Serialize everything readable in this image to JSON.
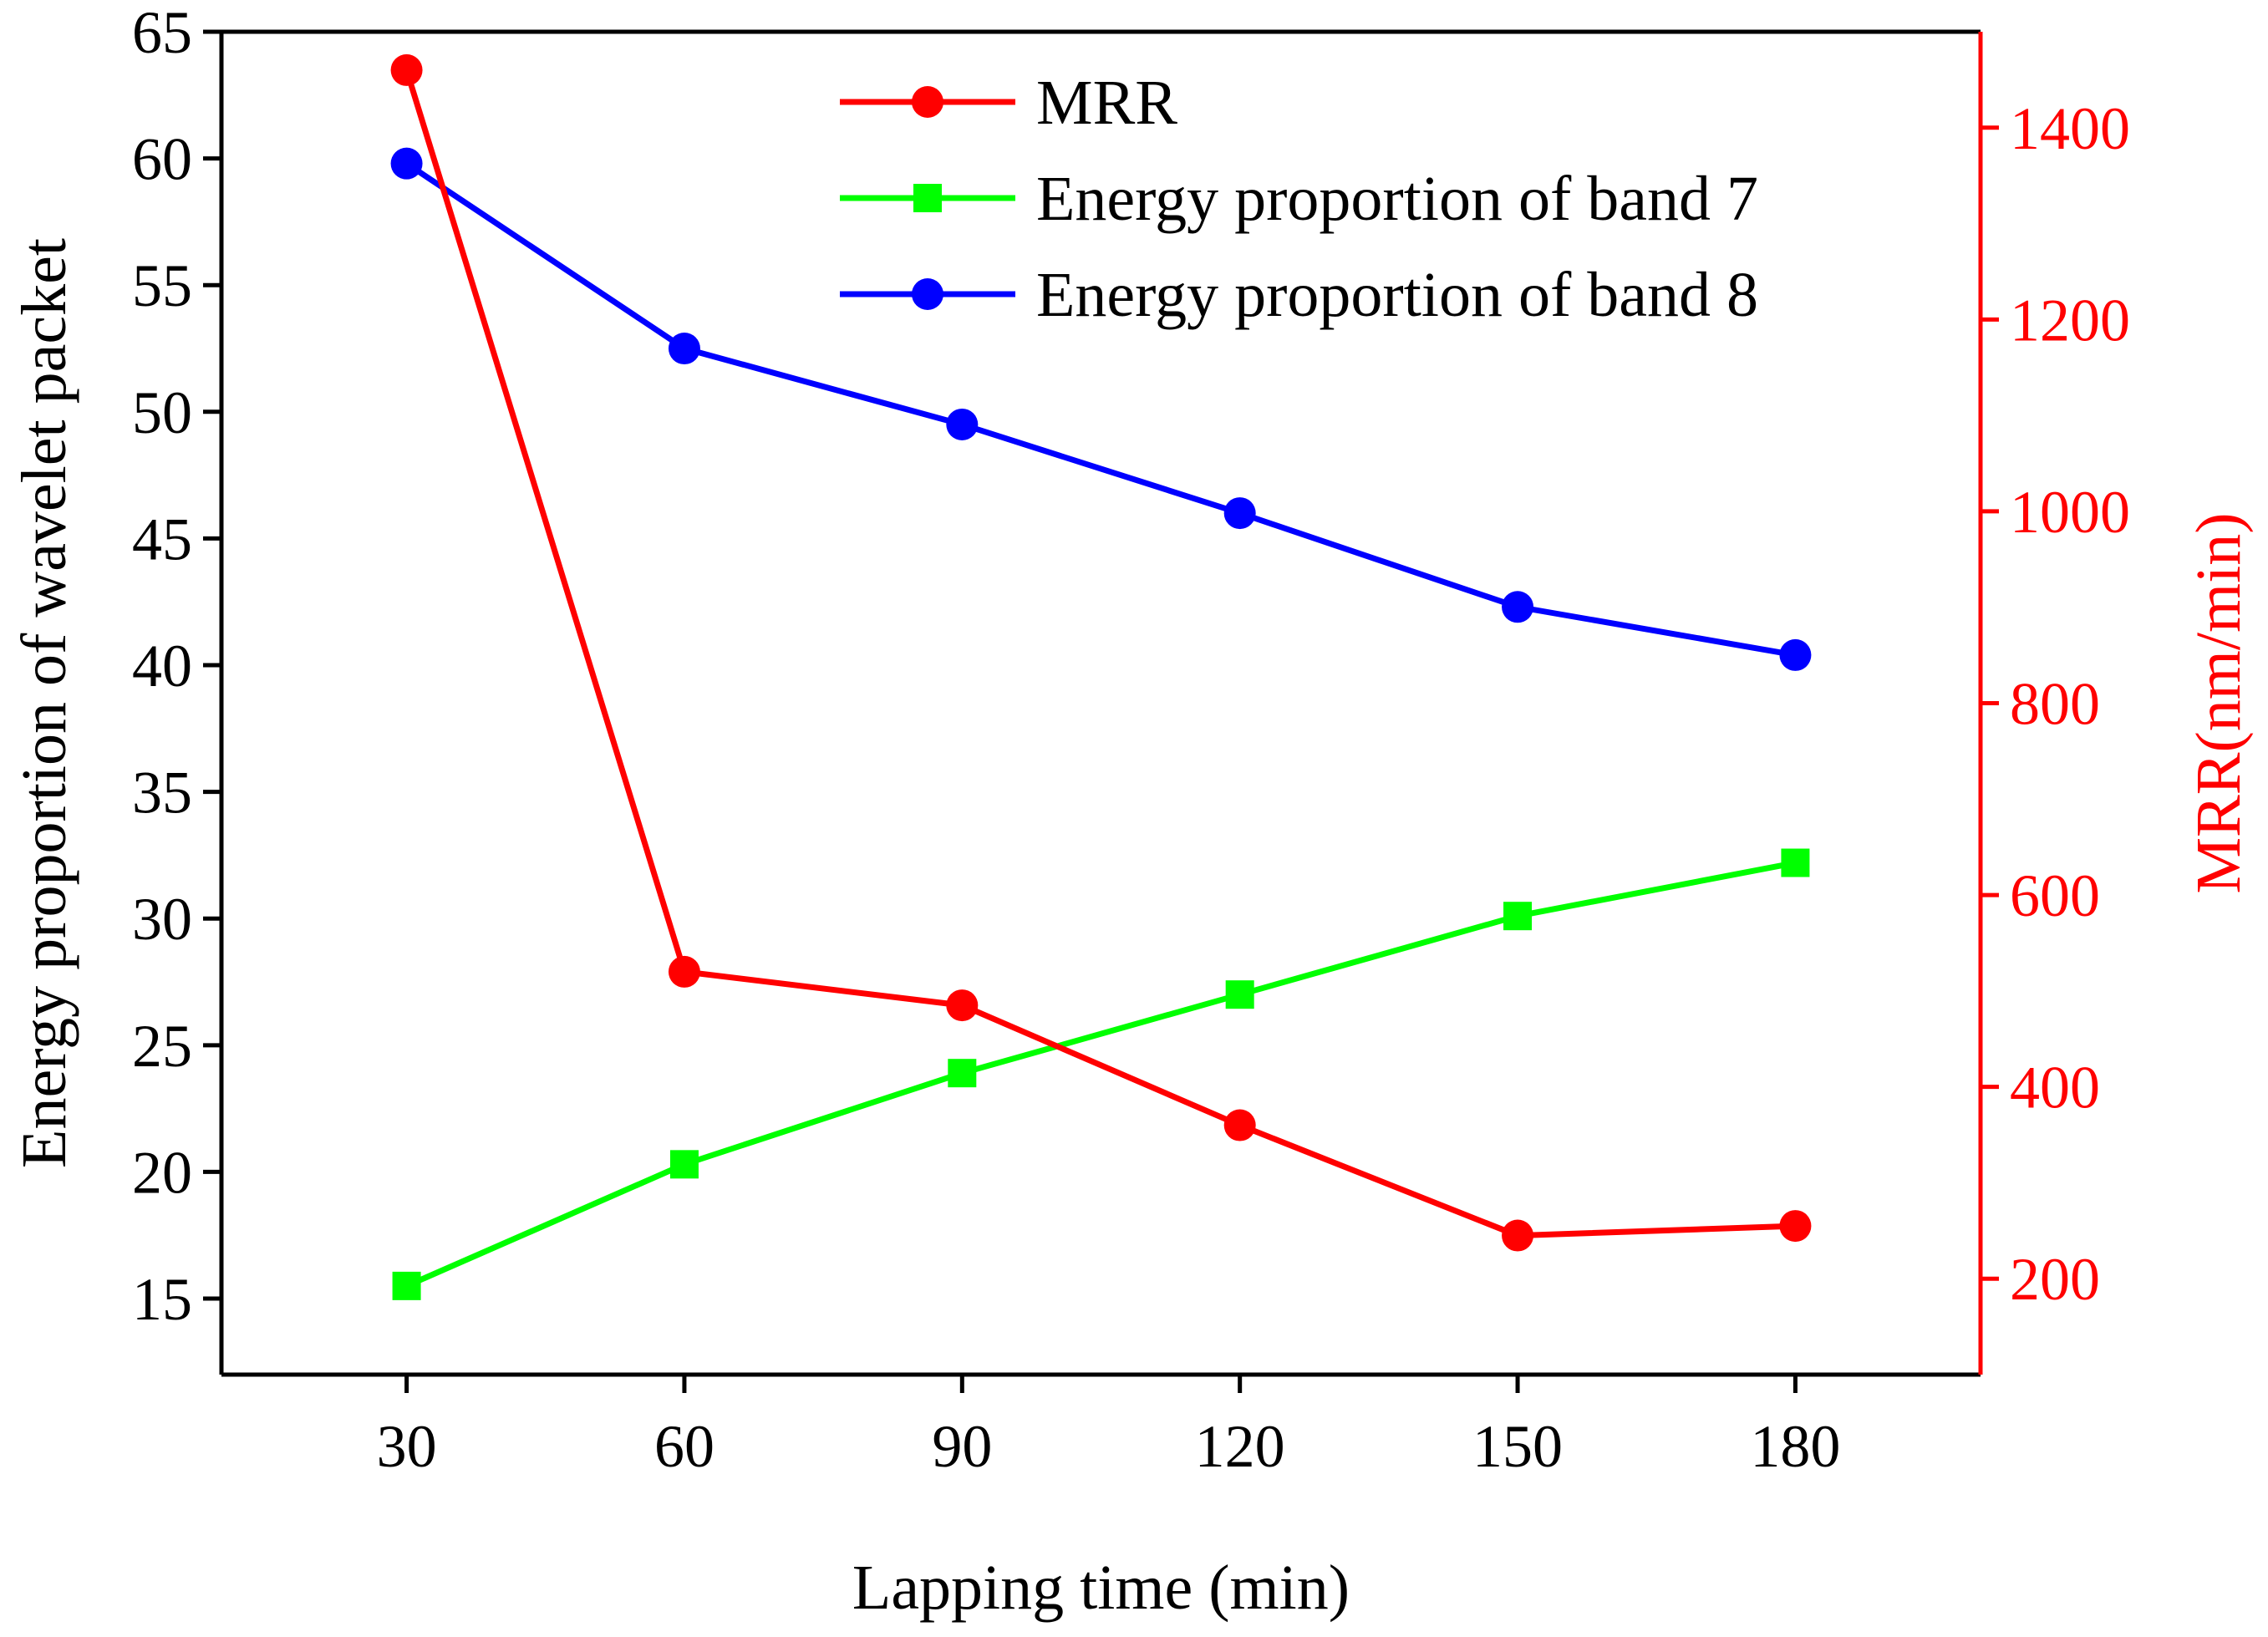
{
  "chart_data": {
    "type": "line",
    "title": "",
    "xlabel": "Lapping time (min)",
    "ylabel_left": "Energy proportion of wavelet packet",
    "ylabel_right": "MRR(nm/min)",
    "x": [
      30,
      60,
      90,
      120,
      150,
      180
    ],
    "xlim": [
      10,
      200
    ],
    "ylim_left": [
      12,
      65
    ],
    "ylim_right": [
      100,
      1500
    ],
    "xticks": [
      30,
      60,
      90,
      120,
      150,
      180
    ],
    "yticks_left": [
      15,
      20,
      25,
      30,
      35,
      40,
      45,
      50,
      55,
      60,
      65
    ],
    "yticks_right": [
      200,
      400,
      600,
      800,
      1000,
      1200,
      1400
    ],
    "grid": false,
    "legend_position": "top-center",
    "series": [
      {
        "name": "MRR",
        "axis": "right",
        "color": "#ff0000",
        "marker": "circle",
        "values": [
          1460,
          520,
          485,
          360,
          245,
          255
        ]
      },
      {
        "name": "Energy proportion of band 7",
        "axis": "left",
        "color": "#00ff00",
        "marker": "square",
        "values": [
          15.5,
          20.3,
          23.9,
          27.0,
          30.1,
          32.2
        ]
      },
      {
        "name": "Energy proportion of band 8",
        "axis": "left",
        "color": "#0000ff",
        "marker": "circle",
        "values": [
          59.8,
          52.5,
          49.5,
          46.0,
          42.3,
          40.4
        ]
      }
    ]
  }
}
